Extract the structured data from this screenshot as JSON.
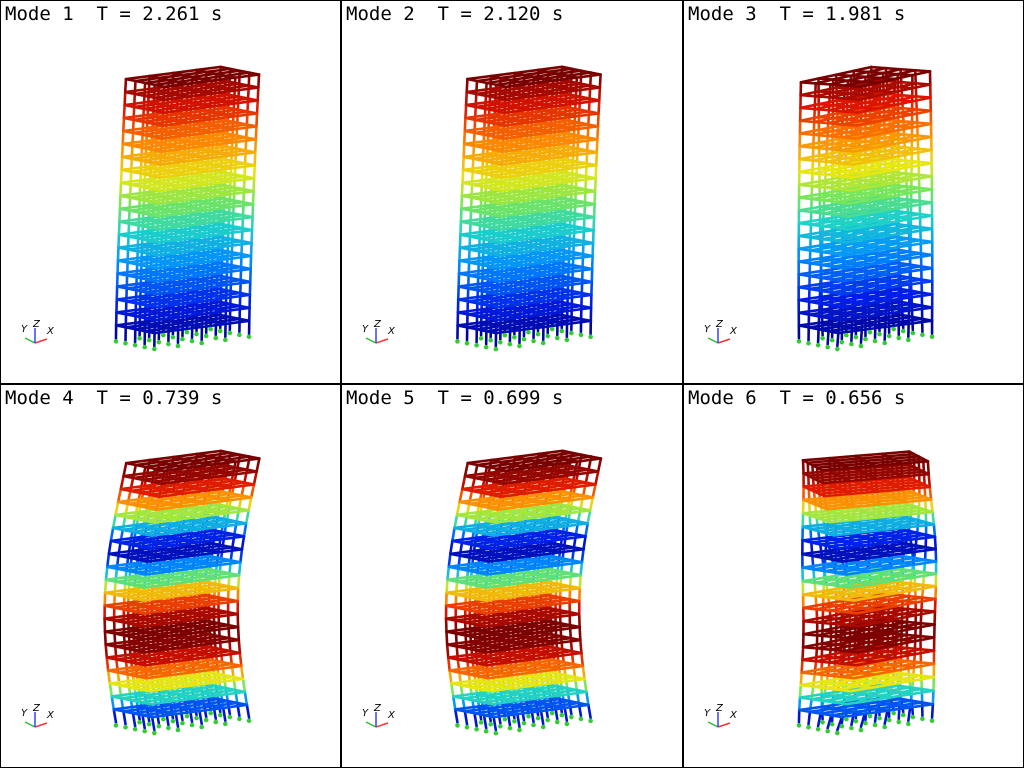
{
  "panels": [
    {
      "mode_label": "Mode 1",
      "period": "T = 2.261 s",
      "shape": "sway"
    },
    {
      "mode_label": "Mode 2",
      "period": "T = 2.120 s",
      "shape": "sway"
    },
    {
      "mode_label": "Mode 3",
      "period": "T = 1.981 s",
      "shape": "torsion"
    },
    {
      "mode_label": "Mode 4",
      "period": "T = 0.739 s",
      "shape": "sway2"
    },
    {
      "mode_label": "Mode 5",
      "period": "T = 0.699 s",
      "shape": "sway2"
    },
    {
      "mode_label": "Mode 6",
      "period": "T = 0.656 s",
      "shape": "torsion2"
    }
  ],
  "triad": {
    "y": "Y",
    "z": "Z",
    "x": "X"
  },
  "colors": {
    "low": "#0000a0",
    "mid": "#20c0c0",
    "high": "#8b0000",
    "support": "#33cc33",
    "axis_x": "#ff3333",
    "axis_y": "#33bb33",
    "axis_z": "#3344ff"
  }
}
